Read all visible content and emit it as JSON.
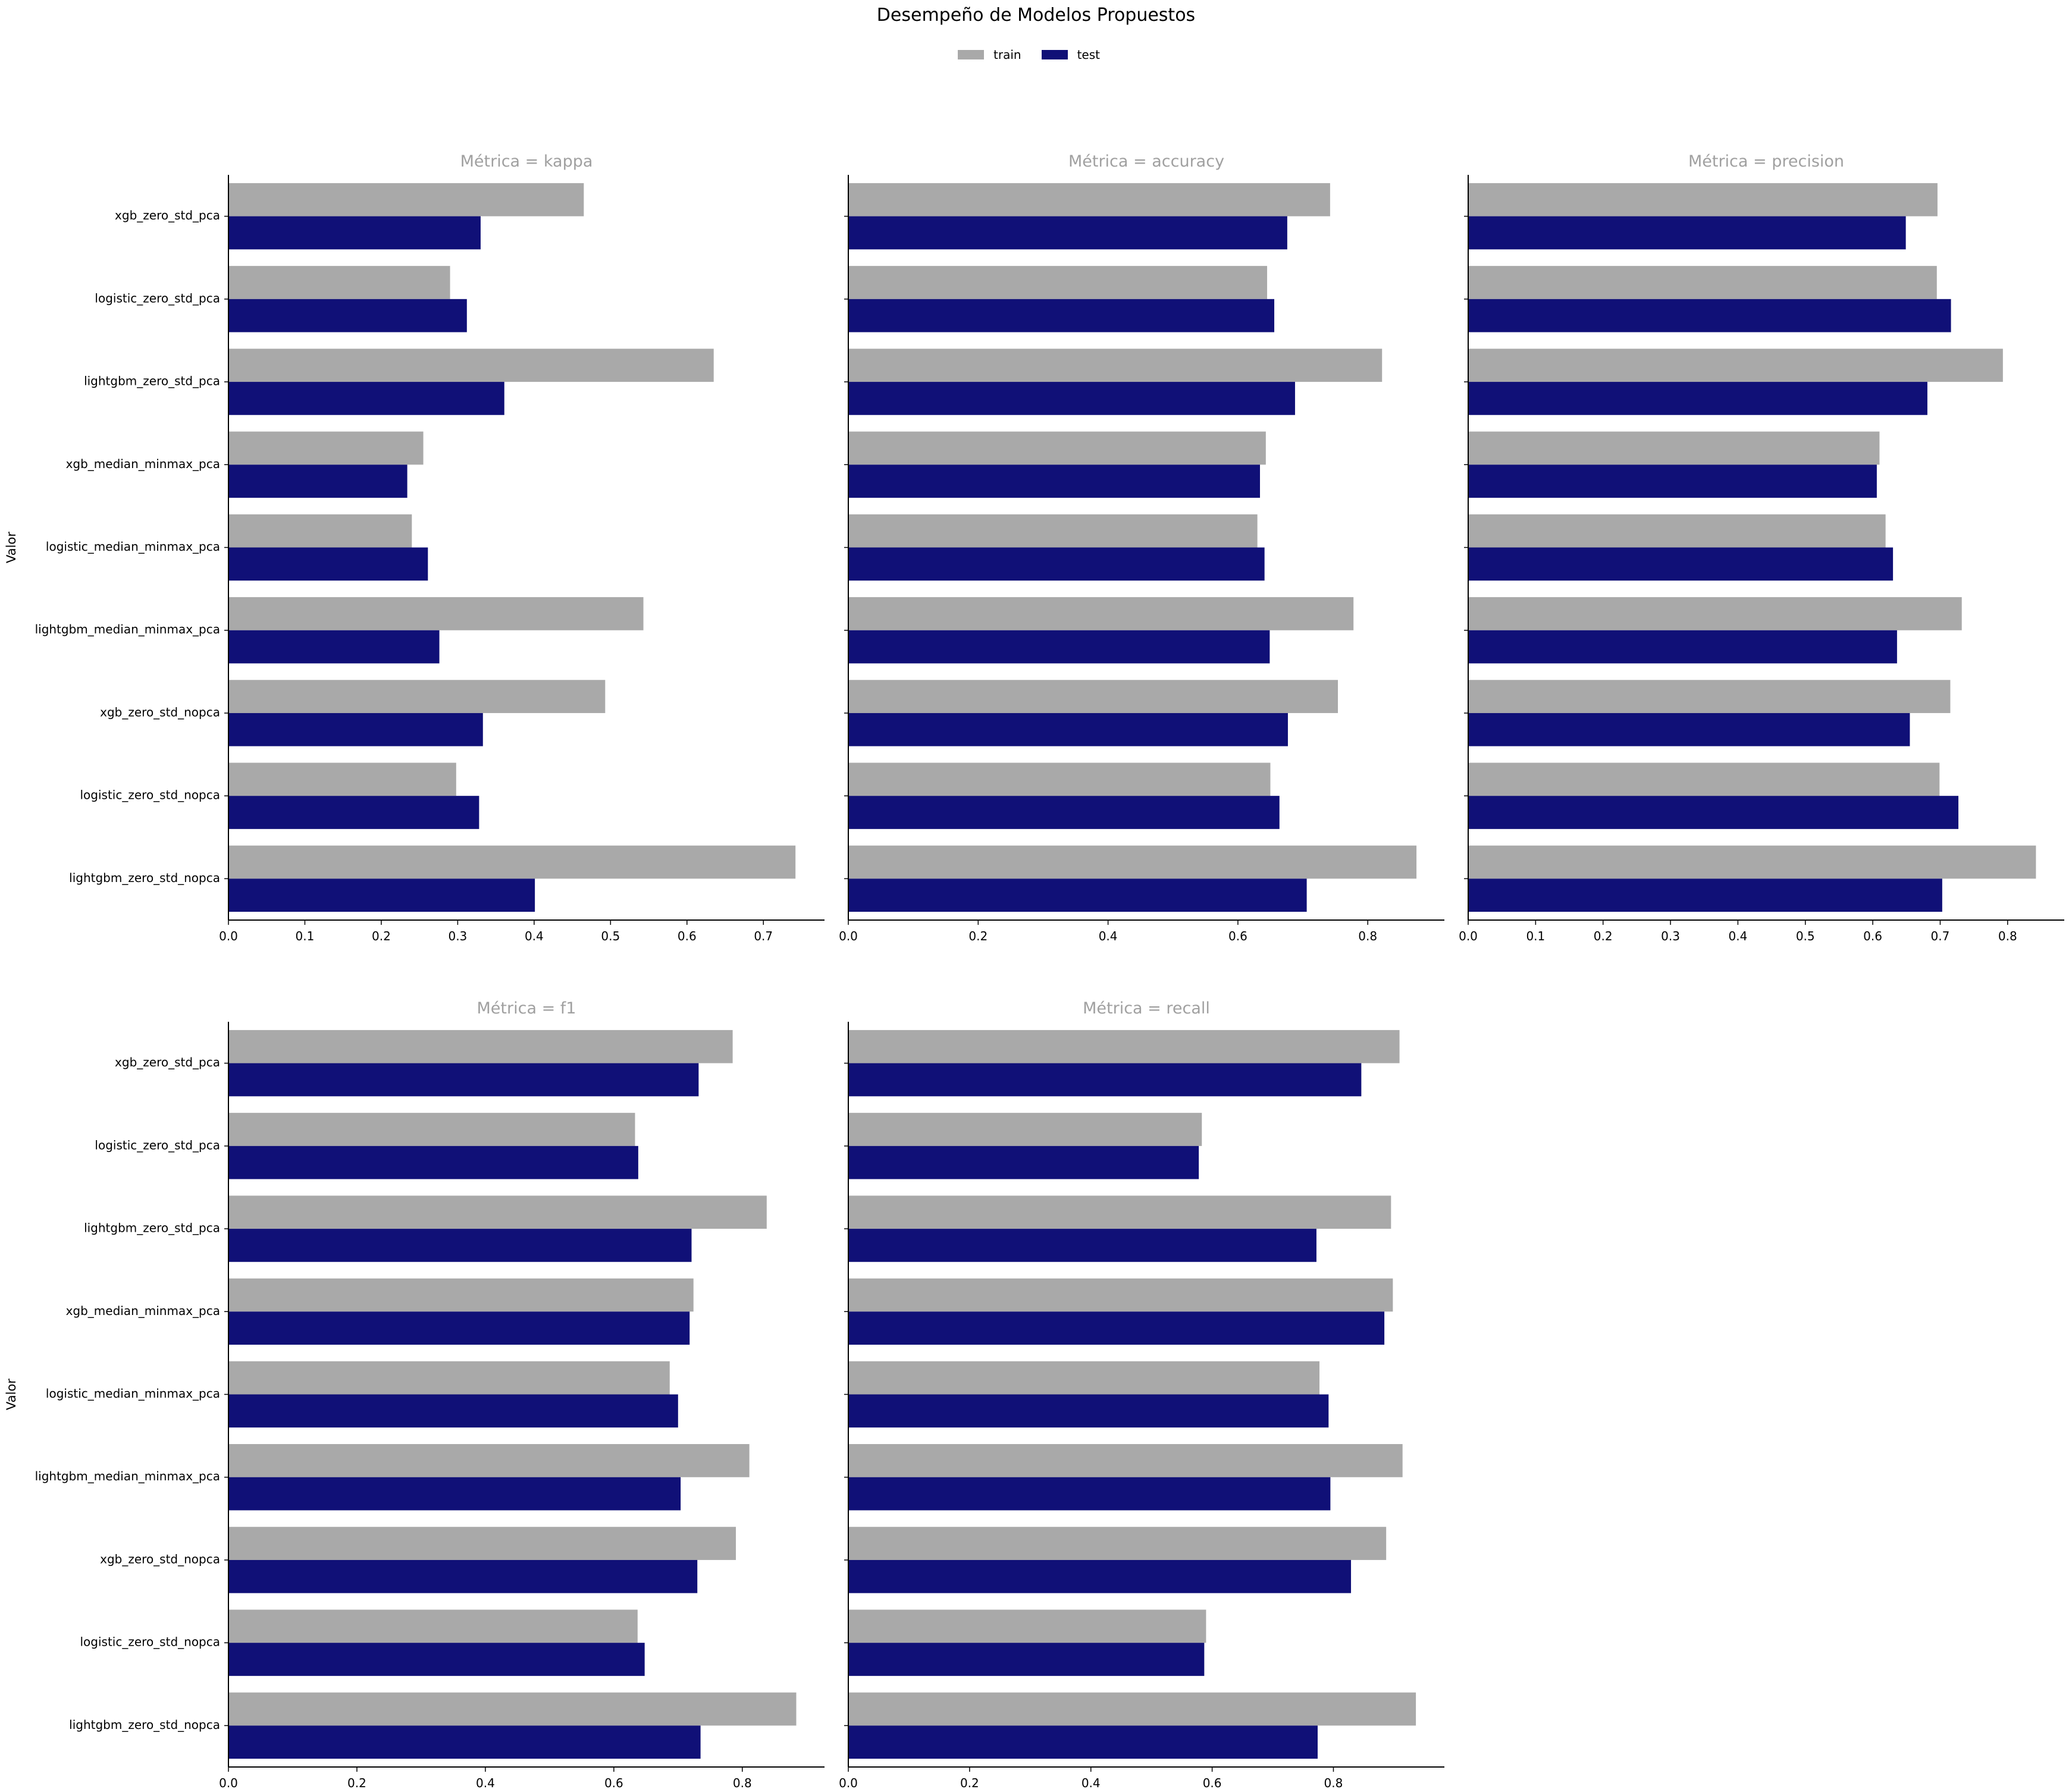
{
  "figure": {
    "title": "Desempeño de Modelos Propuestos",
    "ylabel": "Valor"
  },
  "legend": {
    "items": [
      {
        "label": "train",
        "color": "#a9a9a9"
      },
      {
        "label": "test",
        "color": "#101077"
      }
    ]
  },
  "colors": {
    "train": "#a9a9a9",
    "test": "#101077",
    "facet_title": "#a0a0a0"
  },
  "chart_data": [
    {
      "type": "bar",
      "orientation": "horizontal",
      "title": "Métrica = kappa",
      "ylabel": "Valor",
      "categories": [
        "xgb_zero_std_pca",
        "logistic_zero_std_pca",
        "lightgbm_zero_std_pca",
        "xgb_median_minmax_pca",
        "logistic_median_minmax_pca",
        "lightgbm_median_minmax_pca",
        "xgb_zero_std_nopca",
        "logistic_zero_std_nopca",
        "lightgbm_zero_std_nopca"
      ],
      "series": [
        {
          "name": "train",
          "values": [
            0.465,
            0.29,
            0.635,
            0.255,
            0.24,
            0.543,
            0.493,
            0.298,
            0.742
          ]
        },
        {
          "name": "test",
          "values": [
            0.33,
            0.312,
            0.361,
            0.234,
            0.261,
            0.276,
            0.333,
            0.328,
            0.401
          ]
        }
      ],
      "xlim": [
        0,
        0.78
      ],
      "xticks": [
        "0.0",
        "0.1",
        "0.2",
        "0.3",
        "0.4",
        "0.5",
        "0.6",
        "0.7"
      ],
      "xtick_values": [
        0,
        0.1,
        0.2,
        0.3,
        0.4,
        0.5,
        0.6,
        0.7
      ]
    },
    {
      "type": "bar",
      "orientation": "horizontal",
      "title": "Métrica = accuracy",
      "categories": [
        "xgb_zero_std_pca",
        "logistic_zero_std_pca",
        "lightgbm_zero_std_pca",
        "xgb_median_minmax_pca",
        "logistic_median_minmax_pca",
        "lightgbm_median_minmax_pca",
        "xgb_zero_std_nopca",
        "logistic_zero_std_nopca",
        "lightgbm_zero_std_nopca"
      ],
      "series": [
        {
          "name": "train",
          "values": [
            0.742,
            0.645,
            0.822,
            0.643,
            0.63,
            0.778,
            0.754,
            0.65,
            0.875
          ]
        },
        {
          "name": "test",
          "values": [
            0.676,
            0.656,
            0.688,
            0.634,
            0.641,
            0.649,
            0.677,
            0.664,
            0.706
          ]
        }
      ],
      "xlim": [
        0,
        0.918
      ],
      "xticks": [
        "0.0",
        "0.2",
        "0.4",
        "0.6",
        "0.8"
      ],
      "xtick_values": [
        0,
        0.2,
        0.4,
        0.6,
        0.8
      ]
    },
    {
      "type": "bar",
      "orientation": "horizontal",
      "title": "Métrica = precision",
      "categories": [
        "xgb_zero_std_pca",
        "logistic_zero_std_pca",
        "lightgbm_zero_std_pca",
        "xgb_median_minmax_pca",
        "logistic_median_minmax_pca",
        "lightgbm_median_minmax_pca",
        "xgb_zero_std_nopca",
        "logistic_zero_std_nopca",
        "lightgbm_zero_std_nopca"
      ],
      "series": [
        {
          "name": "train",
          "values": [
            0.696,
            0.695,
            0.793,
            0.61,
            0.619,
            0.732,
            0.715,
            0.699,
            0.842
          ]
        },
        {
          "name": "test",
          "values": [
            0.649,
            0.716,
            0.681,
            0.606,
            0.63,
            0.636,
            0.655,
            0.727,
            0.703
          ]
        }
      ],
      "xlim": [
        0,
        0.884
      ],
      "xticks": [
        "0.0",
        "0.1",
        "0.2",
        "0.3",
        "0.4",
        "0.5",
        "0.6",
        "0.7",
        "0.8"
      ],
      "xtick_values": [
        0,
        0.1,
        0.2,
        0.3,
        0.4,
        0.5,
        0.6,
        0.7,
        0.8
      ]
    },
    {
      "type": "bar",
      "orientation": "horizontal",
      "title": "Métrica = f1",
      "ylabel": "Valor",
      "categories": [
        "xgb_zero_std_pca",
        "logistic_zero_std_pca",
        "lightgbm_zero_std_pca",
        "xgb_median_minmax_pca",
        "logistic_median_minmax_pca",
        "lightgbm_median_minmax_pca",
        "xgb_zero_std_nopca",
        "logistic_zero_std_nopca",
        "lightgbm_zero_std_nopca"
      ],
      "series": [
        {
          "name": "train",
          "values": [
            0.785,
            0.633,
            0.838,
            0.724,
            0.687,
            0.811,
            0.79,
            0.637,
            0.884
          ]
        },
        {
          "name": "test",
          "values": [
            0.732,
            0.638,
            0.721,
            0.718,
            0.7,
            0.704,
            0.73,
            0.648,
            0.735
          ]
        }
      ],
      "xlim": [
        0,
        0.928
      ],
      "xticks": [
        "0.0",
        "0.2",
        "0.4",
        "0.6",
        "0.8"
      ],
      "xtick_values": [
        0,
        0.2,
        0.4,
        0.6,
        0.8
      ]
    },
    {
      "type": "bar",
      "orientation": "horizontal",
      "title": "Métrica = recall",
      "categories": [
        "xgb_zero_std_pca",
        "logistic_zero_std_pca",
        "lightgbm_zero_std_pca",
        "xgb_median_minmax_pca",
        "logistic_median_minmax_pca",
        "lightgbm_median_minmax_pca",
        "xgb_zero_std_nopca",
        "logistic_zero_std_nopca",
        "lightgbm_zero_std_nopca"
      ],
      "series": [
        {
          "name": "train",
          "values": [
            0.909,
            0.583,
            0.895,
            0.898,
            0.777,
            0.914,
            0.887,
            0.59,
            0.936
          ]
        },
        {
          "name": "test",
          "values": [
            0.846,
            0.578,
            0.772,
            0.884,
            0.792,
            0.795,
            0.829,
            0.587,
            0.774
          ]
        }
      ],
      "xlim": [
        0,
        0.983
      ],
      "xticks": [
        "0.0",
        "0.2",
        "0.4",
        "0.6",
        "0.8"
      ],
      "xtick_values": [
        0,
        0.2,
        0.4,
        0.6,
        0.8
      ]
    }
  ]
}
